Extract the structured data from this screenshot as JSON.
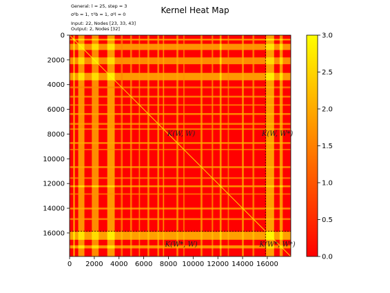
{
  "info": {
    "general": "General: l = 25, step = 3",
    "hyper": "σ²b = 1, τ²b = 1, σ²l = 0",
    "input": "Input: 22, Nodes [23, 33, 43]",
    "output": "Output: 2, Nodes [32]"
  },
  "chart_data": {
    "type": "heatmap",
    "title": "Kernel Heat Map",
    "xlabel": "",
    "ylabel": "",
    "xlim": [
      0,
      17900
    ],
    "ylim": [
      17900,
      0
    ],
    "x_ticks": [
      "0",
      "2000",
      "4000",
      "6000",
      "8000",
      "10000",
      "12000",
      "14000",
      "16000"
    ],
    "y_ticks": [
      "0",
      "2000",
      "4000",
      "6000",
      "8000",
      "10000",
      "12000",
      "14000",
      "16000"
    ],
    "tick_values": [
      0,
      2000,
      4000,
      6000,
      8000,
      10000,
      12000,
      14000,
      16000
    ],
    "split_index": 15850,
    "colorscale": [
      "#ff0000",
      "#ff8000",
      "#ffff00"
    ],
    "colorbar": {
      "range": [
        0,
        3
      ],
      "ticks": [
        0.0,
        0.5,
        1.0,
        1.5,
        2.0,
        2.5,
        3.0
      ],
      "tick_labels": [
        "0.0",
        "0.5",
        "1.0",
        "1.5",
        "2.0",
        "2.5",
        "3.0"
      ]
    },
    "block_labels": {
      "top_left": "K(W, W)",
      "top_right": "K(W, W*)",
      "bottom_left": "K(W*, W)",
      "bottom_right": "K(W*, W*)"
    },
    "diagonal_value": 3.0,
    "background_value": 0.0,
    "bands": [
      {
        "start": 300,
        "end": 420,
        "value": 2.6
      },
      {
        "start": 700,
        "end": 1200,
        "value": 2.3
      },
      {
        "start": 1800,
        "end": 2350,
        "value": 2.2
      },
      {
        "start": 3050,
        "end": 3650,
        "value": 2.4
      },
      {
        "start": 4150,
        "end": 4300,
        "value": 1.6
      },
      {
        "start": 4900,
        "end": 5050,
        "value": 1.8
      },
      {
        "start": 5600,
        "end": 5700,
        "value": 1.9
      },
      {
        "start": 6300,
        "end": 6450,
        "value": 2.0
      },
      {
        "start": 7100,
        "end": 7250,
        "value": 1.9
      },
      {
        "start": 7550,
        "end": 7650,
        "value": 2.1
      },
      {
        "start": 8650,
        "end": 8800,
        "value": 2.0
      },
      {
        "start": 9200,
        "end": 9300,
        "value": 1.7
      },
      {
        "start": 10600,
        "end": 10750,
        "value": 2.0
      },
      {
        "start": 11500,
        "end": 11620,
        "value": 1.8
      },
      {
        "start": 12150,
        "end": 12300,
        "value": 2.2
      },
      {
        "start": 12800,
        "end": 12900,
        "value": 1.7
      },
      {
        "start": 13950,
        "end": 14100,
        "value": 2.1
      },
      {
        "start": 14800,
        "end": 14950,
        "value": 1.8
      },
      {
        "start": 15900,
        "end": 16550,
        "value": 2.5
      },
      {
        "start": 17000,
        "end": 17250,
        "value": 2.3
      }
    ]
  }
}
